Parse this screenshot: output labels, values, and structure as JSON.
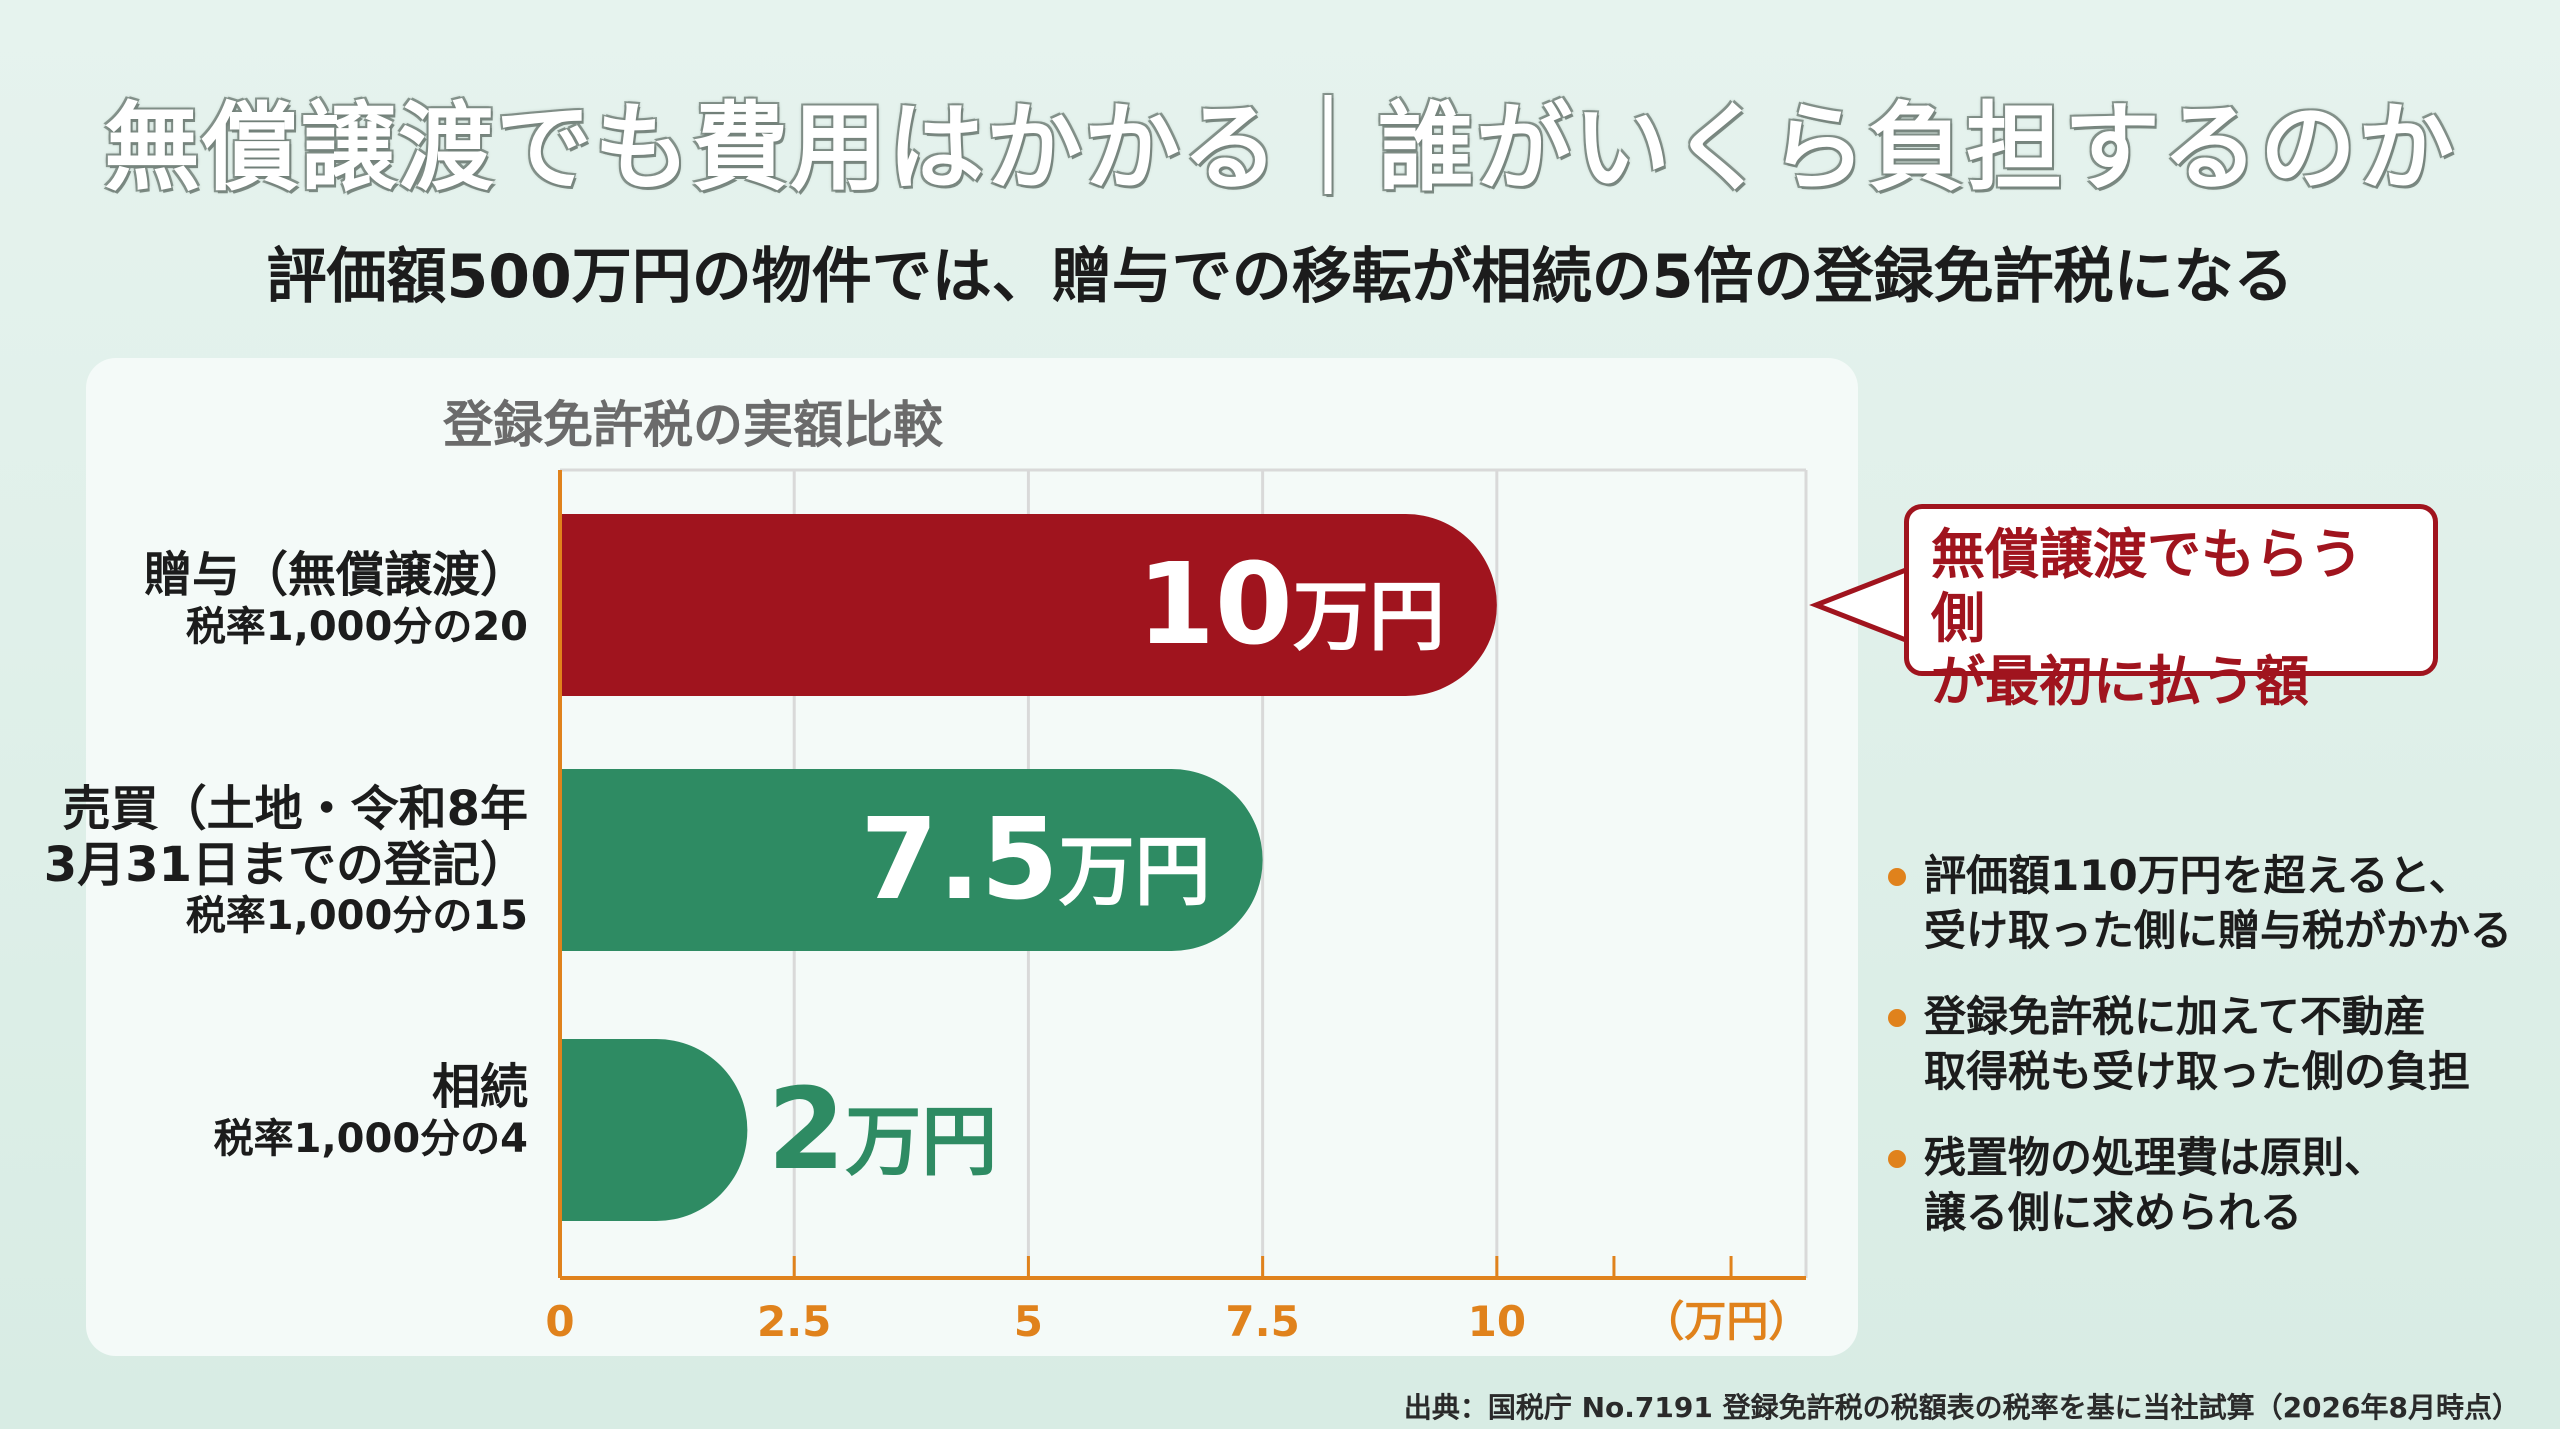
{
  "header": {
    "title": "無償譲渡でも費用はかかる｜誰がいくら負担するのか",
    "subtitle": "評価額500万円の物件では、贈与での移転が相続の5倍の登録免許税になる"
  },
  "chart_data": {
    "type": "bar",
    "orientation": "horizontal",
    "title": "登録免許税の実額比較",
    "categories": [
      {
        "name": "贈与（無償譲渡）",
        "name_lines": [
          "贈与（無償譲渡）"
        ],
        "rate": "税率1,000分の20"
      },
      {
        "name": "売買（土地・令和8年3月31日までの登記）",
        "name_lines": [
          "売買（土地・令和8年",
          "3月31日までの登記）"
        ],
        "rate": "税率1,000分の15"
      },
      {
        "name": "相続",
        "name_lines": [
          "相続"
        ],
        "rate": "税率1,000分の4"
      }
    ],
    "values": [
      10,
      7.5,
      2
    ],
    "value_labels": [
      {
        "number": "10",
        "unit": "万円"
      },
      {
        "number": "7.5",
        "unit": "万円"
      },
      {
        "number": "2",
        "unit": "万円"
      }
    ],
    "colors": [
      "#a0141e",
      "#2e8b63",
      "#2e8b63"
    ],
    "label_colors": [
      "#ffffff",
      "#ffffff",
      "#2e8b63"
    ],
    "xlim": [
      0,
      13.3
    ],
    "xticks": [
      {
        "value": 0,
        "label": "0"
      },
      {
        "value": 2.5,
        "label": "2.5"
      },
      {
        "value": 5,
        "label": "5"
      },
      {
        "value": 7.5,
        "label": "7.5"
      },
      {
        "value": 10,
        "label": "10"
      }
    ],
    "unit_label": "（万円）",
    "grid": true,
    "axis_color": "#e0821c"
  },
  "callout": {
    "lines": [
      "無償譲渡でもらう側",
      "が最初に払う額"
    ]
  },
  "notes": [
    {
      "lines": [
        "評価額110万円を超えると、",
        "受け取った側に贈与税がかかる"
      ]
    },
    {
      "lines": [
        "登録免許税に加えて不動産",
        "取得税も受け取った側の負担"
      ]
    },
    {
      "lines": [
        "残置物の処理費は原則、",
        "譲る側に求められる"
      ]
    }
  ],
  "source": "出典：国税庁 No.7191 登録免許税の税額表の税率を基に当社試算（2026年8月時点）"
}
